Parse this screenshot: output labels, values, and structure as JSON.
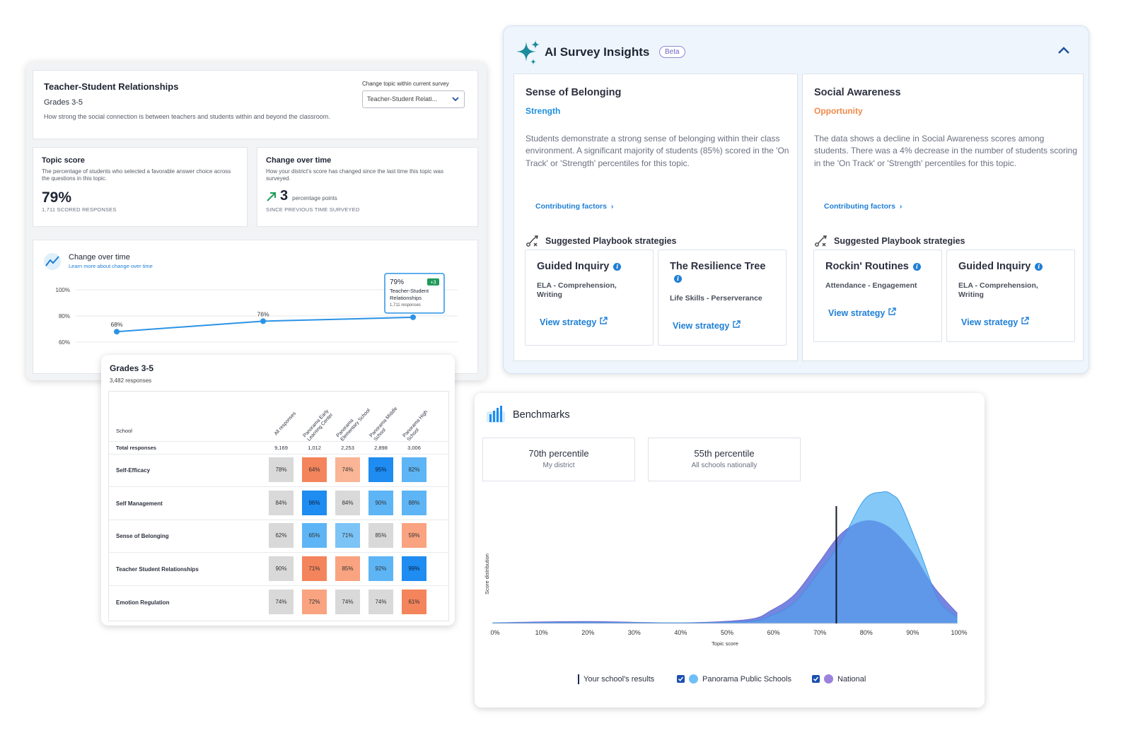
{
  "topic": {
    "title": "Teacher-Student Relationships",
    "grade": "Grades 3-5",
    "description": "How strong the social connection is between teachers and students within and beyond the classroom.",
    "select_label": "Change topic within current survey",
    "select_value": "Teacher-Student Relati...",
    "score": {
      "label": "Topic score",
      "sub": "The percentage of students who selected a favorable answer choice across the questions in this topic.",
      "value": "79%",
      "responses": "1,711 SCORED RESPONSES"
    },
    "change": {
      "label": "Change over time",
      "sub": "How your district's score has changed since the last time this topic was surveyed.",
      "value": "3",
      "unit": "percentage points",
      "since": "SINCE PREVIOUS TIME SURVEYED"
    },
    "chart": {
      "title": "Change over time",
      "link": "Learn more about change over time",
      "tooltip_value": "79%",
      "tooltip_badge": "+3",
      "tooltip_name": "Teacher-Student Relationships",
      "tooltip_responses": "1,711 responses"
    }
  },
  "chart_data": [
    {
      "type": "line",
      "title": "Change over time",
      "yticks": [
        "100%",
        "80%",
        "60%"
      ],
      "ylim": [
        60,
        100
      ],
      "x": [
        1,
        2,
        3
      ],
      "values": [
        68,
        76,
        79
      ],
      "point_labels": [
        "68%",
        "76%",
        "79%"
      ]
    },
    {
      "type": "area",
      "title": "",
      "xlabel": "Topic score",
      "ylabel": "Score distribution",
      "xticks": [
        "0%",
        "10%",
        "20%",
        "30%",
        "40%",
        "50%",
        "60%",
        "70%",
        "80%",
        "90%",
        "100%"
      ],
      "xlim": [
        0,
        100
      ],
      "your_school_marker": 74,
      "series": [
        {
          "name": "Panorama Public Schools",
          "color": "#6fbef7",
          "x": [
            0,
            20,
            40,
            55,
            60,
            65,
            70,
            75,
            80,
            84,
            86,
            88,
            92,
            96,
            100
          ],
          "values": [
            0.5,
            0.8,
            0.5,
            1.5,
            6,
            16,
            38,
            62,
            94,
            100,
            98,
            90,
            55,
            18,
            5
          ]
        },
        {
          "name": "National",
          "color": "#9b82dd",
          "x": [
            0,
            20,
            40,
            55,
            60,
            65,
            70,
            75,
            80,
            85,
            90,
            95,
            100
          ],
          "values": [
            0.5,
            1.5,
            0.5,
            3,
            10,
            22,
            45,
            68,
            78,
            74,
            56,
            28,
            8
          ]
        }
      ]
    }
  ],
  "ai": {
    "title": "AI Survey Insights",
    "badge": "Beta",
    "cards": [
      {
        "heading": "Sense of Belonging",
        "tag": "Strength",
        "tag_color": "#1e8fe0",
        "body": "Students demonstrate a strong sense of belonging within their class environment. A significant majority of students (85%) scored in the 'On Track' or 'Strength' percentiles for this topic.",
        "factors": "Contributing factors",
        "suggested": "Suggested Playbook strategies",
        "strategies": [
          {
            "name": "Guided Inquiry",
            "category": "ELA - Comprehension, Writing",
            "view": "View strategy"
          },
          {
            "name": "The Resilience Tree",
            "category": "Life Skills - Perserverance",
            "view": "View strategy"
          }
        ]
      },
      {
        "heading": "Social Awareness",
        "tag": "Opportunity",
        "tag_color": "#f08a4b",
        "body": "The data shows a decline in Social Awareness scores among students. There was a 4% decrease in the number of students scoring in the 'On Track' or 'Strength' percentiles for this topic.",
        "factors": "Contributing factors",
        "suggested": "Suggested Playbook strategies",
        "strategies": [
          {
            "name": "Rockin' Routines",
            "category": "Attendance - Engagement",
            "view": "View strategy"
          },
          {
            "name": "Guided Inquiry",
            "category": "ELA - Comprehension, Writing",
            "view": "View strategy"
          }
        ]
      }
    ]
  },
  "grades": {
    "title": "Grades 3-5",
    "responses": "3,482 responses",
    "school_header": "School",
    "total_label": "Total responses",
    "columns": [
      "All responses",
      "Panorama Early Learning Center",
      "Panorama Elementary School",
      "Panorama Middle School",
      "Panorama High School"
    ],
    "totals": [
      "9,169",
      "1,012",
      "2,253",
      "2,898",
      "3,006"
    ],
    "rows": [
      {
        "label": "Self-Efficacy",
        "values": [
          "78%",
          "64%",
          "74%",
          "95%",
          "82%"
        ]
      },
      {
        "label": "Self Management",
        "values": [
          "84%",
          "96%",
          "84%",
          "90%",
          "88%"
        ]
      },
      {
        "label": "Sense of Belonging",
        "values": [
          "62%",
          "65%",
          "71%",
          "85%",
          "59%"
        ]
      },
      {
        "label": "Teacher Student Relationships",
        "values": [
          "90%",
          "71%",
          "85%",
          "92%",
          "99%"
        ]
      },
      {
        "label": "Emotion Regulation",
        "values": [
          "74%",
          "72%",
          "74%",
          "74%",
          "61%"
        ]
      }
    ],
    "cell_colors": [
      [
        "#d9d9d9",
        "#f4845c",
        "#f9b595",
        "#1e8cf0",
        "#5db5f5"
      ],
      [
        "#d9d9d9",
        "#1e8cf0",
        "#d9d9d9",
        "#5db5f5",
        "#5db5f5"
      ],
      [
        "#d9d9d9",
        "#5db5f5",
        "#7cc4f6",
        "#d9d9d9",
        "#f9a380"
      ],
      [
        "#d9d9d9",
        "#f4845c",
        "#f9a380",
        "#5db5f5",
        "#1e8cf0"
      ],
      [
        "#d9d9d9",
        "#f9a380",
        "#d9d9d9",
        "#d9d9d9",
        "#f4845c"
      ]
    ]
  },
  "bench": {
    "title": "Benchmarks",
    "boxes": [
      {
        "pct": "70th percentile",
        "sub": "My district"
      },
      {
        "pct": "55th percentile",
        "sub": "All schools nationally"
      }
    ],
    "legend": {
      "school": "Your school's results",
      "district": "Panorama Public Schools",
      "national": "National"
    }
  }
}
